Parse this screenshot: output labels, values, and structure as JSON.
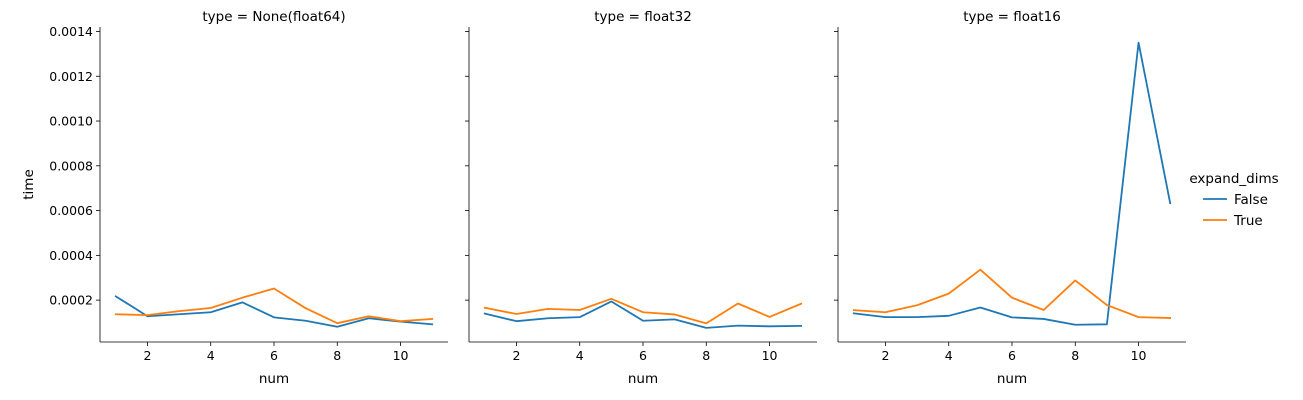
{
  "chart_data": {
    "type": "line",
    "xlabel": "num",
    "ylabel": "time",
    "x": [
      1,
      2,
      3,
      4,
      5,
      6,
      7,
      8,
      9,
      10,
      11
    ],
    "xticks": [
      2,
      4,
      6,
      8,
      10
    ],
    "yticks": [
      0.0002,
      0.0004,
      0.0006,
      0.0008,
      0.001,
      0.0012,
      0.0014
    ],
    "ytick_labels": [
      "0.0002",
      "0.0004",
      "0.0006",
      "0.0008",
      "0.0010",
      "0.0012",
      "0.0014"
    ],
    "xlim": [
      0.5,
      11.5
    ],
    "ylim": [
      1.3e-05,
      0.00142
    ],
    "grid": false,
    "sharey": true,
    "legend": {
      "title": "expand_dims",
      "placement": "right",
      "entries": [
        {
          "name": "False",
          "color": "#1f77b4"
        },
        {
          "name": "True",
          "color": "#ff7f0e"
        }
      ]
    },
    "facets": [
      {
        "title": "type = None(float64)",
        "series": [
          {
            "name": "False",
            "values": [
              0.000217,
              0.000128,
              0.000137,
              0.000146,
              0.00019,
              0.000123,
              0.000108,
              8.1e-05,
              0.000119,
              0.000104,
              9.2e-05
            ]
          },
          {
            "name": "True",
            "values": [
              0.000137,
              0.000133,
              0.000151,
              0.000165,
              0.000211,
              0.000252,
              0.000164,
              9.7e-05,
              0.000128,
              0.000106,
              0.000116
            ]
          }
        ]
      },
      {
        "title": "type = float32",
        "series": [
          {
            "name": "False",
            "values": [
              0.00014,
              0.000106,
              0.000119,
              0.000124,
              0.000194,
              0.000108,
              0.000114,
              7.6e-05,
              8.6e-05,
              8.3e-05,
              8.5e-05
            ]
          },
          {
            "name": "True",
            "values": [
              0.000166,
              0.000138,
              0.000161,
              0.000156,
              0.000206,
              0.000146,
              0.000136,
              9.6e-05,
              0.000185,
              0.000125,
              0.000184
            ]
          }
        ]
      },
      {
        "title": "type = float16",
        "series": [
          {
            "name": "False",
            "values": [
              0.000141,
              0.000124,
              0.000124,
              0.00013,
              0.000167,
              0.000123,
              0.000116,
              9e-05,
              9.2e-05,
              0.00135,
              0.000633
            ]
          },
          {
            "name": "True",
            "values": [
              0.000155,
              0.000146,
              0.000177,
              0.000229,
              0.000336,
              0.000211,
              0.000156,
              0.000288,
              0.000178,
              0.000124,
              0.00012
            ]
          }
        ]
      }
    ]
  }
}
